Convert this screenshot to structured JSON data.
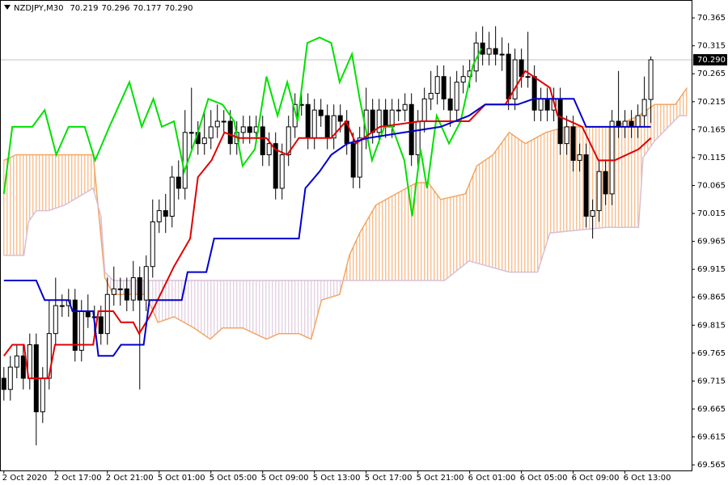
{
  "chart_data": {
    "type": "candlestick",
    "header": {
      "symbol": "NZDJPY,M30",
      "ohlc": [
        "70.219",
        "70.296",
        "70.177",
        "70.290"
      ]
    },
    "categories": [
      "2 Oct 2020",
      null,
      null,
      null,
      null,
      null,
      null,
      null,
      "2 Oct 17:00",
      null,
      null,
      null,
      null,
      null,
      null,
      null,
      "2 Oct 21:00",
      null,
      null,
      null,
      null,
      null,
      null,
      null,
      "5 Oct 01:00",
      null,
      null,
      null,
      null,
      null,
      null,
      null,
      "5 Oct 05:00",
      null,
      null,
      null,
      null,
      null,
      null,
      null,
      "5 Oct 09:00",
      null,
      null,
      null,
      null,
      null,
      null,
      null,
      "5 Oct 13:00",
      null,
      null,
      null,
      null,
      null,
      null,
      null,
      "5 Oct 17:00",
      null,
      null,
      null,
      null,
      null,
      null,
      null,
      "5 Oct 21:00",
      null,
      null,
      null,
      null,
      null,
      null,
      null,
      "6 Oct 01:00",
      null,
      null,
      null,
      null,
      null,
      null,
      null,
      "6 Oct 05:00",
      null,
      null,
      null,
      null,
      null,
      null,
      null,
      "6 Oct 09:00",
      null,
      null,
      null,
      null,
      null,
      null,
      null,
      "6 Oct 13:00",
      null,
      null,
      null,
      null
    ],
    "open": [
      69.72,
      69.7,
      69.74,
      69.76,
      69.72,
      69.78,
      69.66,
      69.72,
      69.8,
      69.85,
      69.85,
      69.86,
      69.77,
      69.84,
      69.83,
      69.83,
      69.8,
      69.87,
      69.88,
      69.88,
      69.86,
      69.9,
      69.86,
      69.92,
      70.0,
      70.02,
      70.01,
      70.08,
      70.06,
      70.16,
      70.16,
      70.14,
      70.15,
      70.17,
      70.18,
      70.18,
      70.14,
      70.16,
      70.17,
      70.16,
      70.17,
      70.12,
      70.14,
      70.06,
      70.12,
      70.17,
      70.21,
      70.21,
      70.15,
      70.2,
      70.19,
      70.15,
      70.19,
      70.18,
      70.14,
      70.08,
      70.15,
      70.2,
      70.16,
      70.2,
      70.17,
      70.2,
      70.2,
      70.21,
      70.12,
      70.18,
      70.22,
      70.23,
      70.26,
      70.22,
      70.2,
      70.25,
      70.26,
      70.27,
      70.32,
      70.3,
      70.31,
      70.3,
      70.3,
      70.22,
      70.29,
      70.26,
      70.26,
      70.2,
      70.22,
      70.2,
      70.22,
      70.14,
      70.17,
      70.11,
      70.12,
      70.01,
      70.02,
      70.09,
      70.05,
      70.18,
      70.17,
      70.18,
      70.17,
      70.19,
      70.219
    ],
    "high": [
      69.74,
      69.76,
      69.78,
      69.78,
      69.8,
      69.8,
      69.74,
      69.86,
      69.9,
      69.87,
      69.88,
      69.88,
      69.86,
      69.87,
      69.85,
      69.85,
      69.9,
      69.92,
      69.9,
      69.9,
      69.93,
      69.92,
      69.94,
      70.04,
      70.04,
      70.05,
      70.1,
      70.11,
      70.2,
      70.24,
      70.18,
      70.2,
      70.2,
      70.21,
      70.2,
      70.2,
      70.18,
      70.19,
      70.19,
      70.19,
      70.19,
      70.16,
      70.16,
      70.14,
      70.19,
      70.23,
      70.23,
      70.23,
      70.22,
      70.22,
      70.21,
      70.21,
      70.21,
      70.2,
      70.16,
      70.17,
      70.24,
      70.22,
      70.22,
      70.22,
      70.22,
      70.22,
      70.23,
      70.23,
      70.2,
      70.24,
      70.27,
      70.28,
      70.28,
      70.26,
      70.27,
      70.28,
      70.29,
      70.34,
      70.35,
      70.34,
      70.35,
      70.33,
      70.32,
      70.31,
      70.31,
      70.34,
      70.28,
      70.24,
      70.24,
      70.24,
      70.24,
      70.19,
      70.19,
      70.14,
      70.14,
      70.04,
      70.11,
      70.11,
      70.2,
      70.27,
      70.2,
      70.2,
      70.21,
      70.26,
      70.296
    ],
    "low": [
      69.68,
      69.68,
      69.72,
      69.7,
      69.7,
      69.6,
      69.64,
      69.7,
      69.78,
      69.83,
      69.83,
      69.75,
      69.75,
      69.81,
      69.8,
      69.78,
      69.78,
      69.85,
      69.85,
      69.84,
      69.84,
      69.7,
      69.84,
      69.9,
      69.98,
      69.98,
      69.99,
      70.04,
      70.04,
      70.13,
      70.12,
      70.12,
      70.13,
      70.15,
      70.16,
      70.12,
      70.12,
      70.14,
      70.14,
      70.14,
      70.1,
      70.1,
      70.04,
      70.04,
      70.1,
      70.15,
      70.19,
      70.13,
      70.13,
      70.17,
      70.13,
      70.13,
      70.16,
      70.12,
      70.06,
      70.06,
      70.13,
      70.14,
      70.14,
      70.15,
      70.15,
      70.18,
      70.18,
      70.1,
      70.1,
      70.16,
      70.2,
      70.21,
      70.2,
      70.17,
      70.18,
      70.23,
      70.24,
      70.25,
      70.28,
      70.28,
      70.28,
      70.27,
      70.2,
      70.2,
      70.24,
      70.24,
      70.18,
      70.18,
      70.18,
      70.18,
      70.12,
      70.12,
      70.09,
      70.09,
      69.99,
      69.97,
      70.0,
      70.03,
      70.03,
      70.15,
      70.15,
      70.15,
      70.15,
      70.17,
      70.177
    ],
    "close": [
      69.7,
      69.74,
      69.76,
      69.72,
      69.78,
      69.66,
      69.72,
      69.8,
      69.85,
      69.85,
      69.86,
      69.77,
      69.84,
      69.83,
      69.83,
      69.8,
      69.87,
      69.88,
      69.88,
      69.86,
      69.9,
      69.86,
      69.92,
      70.0,
      70.02,
      70.01,
      70.08,
      70.06,
      70.16,
      70.16,
      70.14,
      70.15,
      70.17,
      70.18,
      70.18,
      70.14,
      70.16,
      70.17,
      70.16,
      70.17,
      70.12,
      70.14,
      70.06,
      70.12,
      70.17,
      70.21,
      70.21,
      70.15,
      70.2,
      70.19,
      70.15,
      70.19,
      70.18,
      70.14,
      70.08,
      70.15,
      70.2,
      70.16,
      70.2,
      70.17,
      70.2,
      70.2,
      70.21,
      70.12,
      70.18,
      70.22,
      70.23,
      70.26,
      70.22,
      70.2,
      70.25,
      70.26,
      70.27,
      70.32,
      70.3,
      70.31,
      70.3,
      70.3,
      70.22,
      70.29,
      70.26,
      70.26,
      70.2,
      70.22,
      70.2,
      70.22,
      70.14,
      70.17,
      70.11,
      70.12,
      70.01,
      70.02,
      70.09,
      70.05,
      70.18,
      70.17,
      70.18,
      70.17,
      70.19,
      70.219,
      70.29
    ],
    "bull_color": "#ffffff",
    "bear_color": "#000000",
    "cloud": {
      "span_a": {
        "color": "#f4a460",
        "x": [
          0,
          1.9,
          8.1,
          13.8,
          15.6,
          16.9,
          21.9,
          23.8,
          26.3,
          29.4,
          31.9,
          33.8,
          36.9,
          40.6,
          42.5,
          45.6,
          47.5,
          49.1,
          51.9,
          53.4,
          55,
          57.5,
          60.6,
          63.8,
          65.6,
          67.5,
          71.3,
          73.1,
          75.6,
          78.1,
          80.6,
          83.8,
          86.9,
          94.4,
          98.1,
          100.6,
          103.8,
          105.6
        ],
        "values": [
          70.11,
          70.12,
          70.12,
          70.12,
          69.9,
          69.87,
          69.87,
          69.82,
          69.83,
          69.81,
          69.79,
          69.81,
          69.81,
          69.79,
          69.8,
          69.8,
          69.79,
          69.86,
          69.87,
          69.94,
          69.98,
          70.03,
          70.05,
          70.07,
          70.07,
          70.04,
          70.05,
          70.1,
          70.12,
          70.16,
          70.14,
          70.16,
          70.17,
          70.17,
          70.19,
          70.21,
          70.21,
          70.24
        ]
      },
      "span_b": {
        "color": "#d8bfd8",
        "x": [
          0,
          3.1,
          3.8,
          5,
          6.9,
          9.4,
          13.8,
          15,
          15.6,
          16.9,
          53.1,
          68.1,
          71.9,
          78.1,
          82.5,
          84.4,
          93.1,
          98.1,
          98.8,
          100.6,
          104.4,
          105.6
        ],
        "values": [
          69.94,
          69.94,
          70.0,
          70.02,
          70.02,
          70.03,
          70.06,
          70.01,
          69.91,
          69.895,
          69.895,
          69.895,
          69.93,
          69.91,
          69.91,
          69.98,
          69.99,
          69.99,
          70.115,
          70.145,
          70.19,
          70.19
        ]
      }
    },
    "lines": [
      {
        "color": "#00e000",
        "x": [
          0,
          1.3,
          4.4,
          6.3,
          8.1,
          10,
          12.5,
          14.1,
          16.3,
          19.4,
          21.3,
          23.1,
          24.4,
          26.3,
          27.9,
          30,
          31.6,
          33.8,
          35.6,
          36.9,
          38.8,
          40.6,
          42.3,
          43.8,
          45.4,
          46.9,
          48.8,
          50.6,
          51.9,
          53.8,
          55,
          56.9,
          58.8,
          60,
          61.9,
          63.1,
          64.4,
          65.4,
          66.9,
          68.8,
          70.6,
          72.5,
          73.8
        ],
        "values": [
          70.05,
          70.17,
          70.17,
          70.2,
          70.12,
          70.17,
          70.17,
          70.11,
          70.17,
          70.25,
          70.17,
          70.22,
          70.17,
          70.18,
          70.09,
          70.16,
          70.22,
          70.21,
          70.18,
          70.1,
          70.13,
          70.26,
          70.19,
          70.25,
          70.18,
          70.32,
          70.33,
          70.32,
          70.25,
          70.3,
          70.22,
          70.11,
          70.17,
          70.17,
          70.11,
          70.01,
          70.13,
          70.06,
          70.19,
          70.14,
          70.18,
          70.28,
          70.31
        ]
      },
      {
        "color": "#e00000",
        "x": [
          0,
          1.3,
          3.1,
          3.8,
          6.9,
          7.9,
          13.8,
          14.6,
          16.9,
          18.1,
          20,
          20.9,
          22.5,
          26.3,
          28.8,
          30,
          32.1,
          34.1,
          36.3,
          40.6,
          41.9,
          43.8,
          45.6,
          50.6,
          52.9,
          54.4,
          58.1,
          64.4,
          71.9,
          74.4,
          77.5,
          80.6,
          84.4,
          85.6,
          89.4,
          91.9,
          94.4,
          98.1,
          100
        ],
        "values": [
          69.76,
          69.78,
          69.78,
          69.72,
          69.72,
          69.78,
          69.78,
          69.84,
          69.84,
          69.82,
          69.82,
          69.8,
          69.83,
          69.92,
          69.97,
          70.08,
          70.11,
          70.16,
          70.15,
          70.15,
          70.13,
          70.12,
          70.15,
          70.15,
          70.18,
          70.14,
          70.17,
          70.18,
          70.18,
          70.21,
          70.21,
          70.27,
          70.24,
          70.19,
          70.17,
          70.11,
          70.11,
          70.13,
          70.15
        ]
      },
      {
        "color": "#0000cc",
        "x": [
          0,
          5,
          6.3,
          10,
          10.6,
          13.8,
          14.6,
          16.9,
          18.1,
          21.6,
          22.5,
          27.5,
          28.4,
          31.3,
          32.5,
          45.6,
          46.6,
          48.8,
          50.6,
          53.1,
          56.3,
          61.9,
          67.5,
          71.9,
          74.4,
          79.4,
          81.9,
          88.1,
          90,
          100
        ],
        "values": [
          69.895,
          69.895,
          69.86,
          69.86,
          69.84,
          69.84,
          69.76,
          69.76,
          69.78,
          69.78,
          69.86,
          69.86,
          69.91,
          69.91,
          69.97,
          69.97,
          70.06,
          70.09,
          70.12,
          70.14,
          70.15,
          70.16,
          70.17,
          70.19,
          70.21,
          70.21,
          70.22,
          70.22,
          70.17,
          70.17
        ]
      }
    ],
    "last_price": {
      "value": 70.29,
      "label": "70.290"
    },
    "xlim": [
      -0.6,
      106.3
    ],
    "ylim": [
      69.555,
      70.397
    ],
    "yticks": [
      70.365,
      70.315,
      70.265,
      70.215,
      70.165,
      70.115,
      70.065,
      70.015,
      69.965,
      69.915,
      69.865,
      69.815,
      69.765,
      69.715,
      69.665,
      69.615,
      69.565
    ],
    "grid": false
  }
}
